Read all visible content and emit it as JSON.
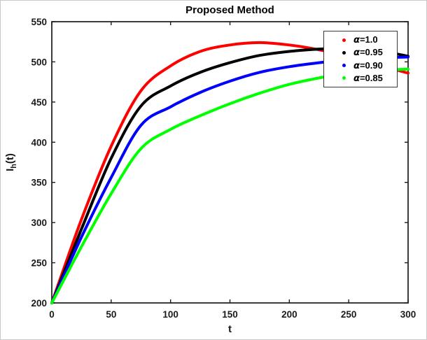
{
  "figure": {
    "title": "Proposed Method",
    "xlabel": "t",
    "ylabel": "I_h(t)",
    "axis_color": "#1a1a1a",
    "background": "#ffffff"
  },
  "chart_data": {
    "type": "line",
    "title": "Proposed Method",
    "xlabel": "t",
    "ylabel": "I_h(t)",
    "xlim": [
      0,
      300
    ],
    "ylim": [
      200,
      550
    ],
    "xticks": [
      0,
      50,
      100,
      150,
      200,
      250,
      300
    ],
    "yticks": [
      200,
      250,
      300,
      350,
      400,
      450,
      500,
      550
    ],
    "grid": false,
    "legend_position": "upper-right",
    "legend_marker": "dot",
    "x": [
      0,
      25,
      50,
      75,
      100,
      125,
      150,
      175,
      200,
      225,
      250,
      275,
      300
    ],
    "series": [
      {
        "name": "α=1.0",
        "color": "#ff0000",
        "values": [
          200,
          304,
          395,
          464,
          495,
          513,
          521,
          524,
          521,
          515,
          506,
          496,
          486
        ]
      },
      {
        "name": "α=0.95",
        "color": "#000000",
        "values": [
          200,
          292,
          380,
          445,
          470,
          487,
          499,
          508,
          513,
          516,
          517,
          514,
          507
        ]
      },
      {
        "name": "α=0.90",
        "color": "#0000ff",
        "values": [
          200,
          282,
          356,
          421,
          444,
          462,
          476,
          487,
          494,
          499,
          503,
          505,
          506
        ]
      },
      {
        "name": "α=0.85",
        "color": "#00ff00",
        "values": [
          200,
          270,
          336,
          392,
          416,
          433,
          448,
          461,
          472,
          480,
          486,
          489,
          491
        ]
      }
    ]
  }
}
